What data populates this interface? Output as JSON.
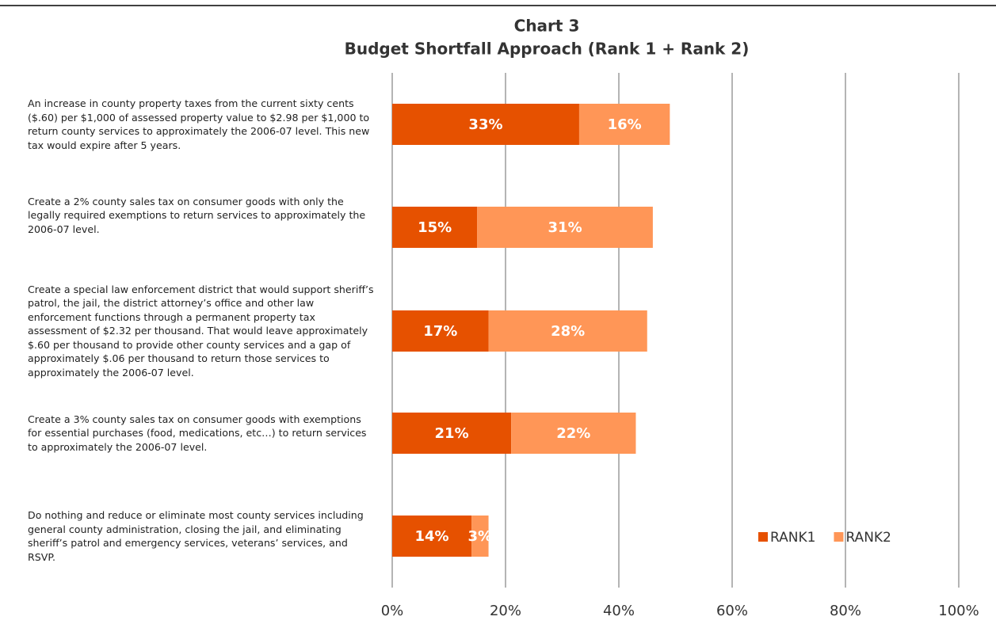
{
  "chart_data": {
    "type": "stacked_barh",
    "title": "Chart 3",
    "subtitle": "Budget Shortfall Approach (Rank 1 + Rank 2)",
    "categories": [
      "An increase in county property taxes from the current sixty cents ($.60) per $1,000 of assessed property value to $2.98 per $1,000 to return county services to approximately the 2006-07 level. This new tax would expire after 5 years.",
      "Create a 2% county sales tax on consumer goods with only the legally required exemptions to return services to approximately the 2006-07 level.",
      "Create a special law enforcement district that would support sheriff’s patrol, the jail, the district attorney’s office and other law enforcement functions through a permanent property tax assessment of $2.32 per thousand.  That would leave approximately $.60 per thousand to provide other county services and a gap of approximately $.06 per thousand to return those services to approximately the 2006-07 level.",
      "Create a 3% county sales tax on consumer goods with exemptions for essential purchases (food, medications, etc…) to return services to approximately the 2006-07 level.",
      "Do nothing and reduce or eliminate most county services including general county administration, closing the jail, and eliminating sheriff’s patrol and emergency services, veterans’ services, and RSVP."
    ],
    "series": [
      {
        "name": "RANK1",
        "color": "#e65100",
        "values": [
          33,
          15,
          17,
          21,
          14
        ],
        "value_labels": [
          "33%",
          "15%",
          "17%",
          "21%",
          "14%"
        ]
      },
      {
        "name": "RANK2",
        "color": "#ff9657",
        "values": [
          16,
          31,
          28,
          22,
          3
        ],
        "value_labels": [
          "16%",
          "31%",
          "28%",
          "22%",
          "3%"
        ]
      }
    ],
    "xlim": [
      0,
      100
    ],
    "xticks": [
      {
        "value": 0,
        "label": "0%"
      },
      {
        "value": 20,
        "label": "20%"
      },
      {
        "value": 40,
        "label": "40%"
      },
      {
        "value": 60,
        "label": "60%"
      },
      {
        "value": 80,
        "label": "80%"
      },
      {
        "value": 100,
        "label": "100%"
      }
    ],
    "grid": true,
    "legend": "lower right"
  }
}
